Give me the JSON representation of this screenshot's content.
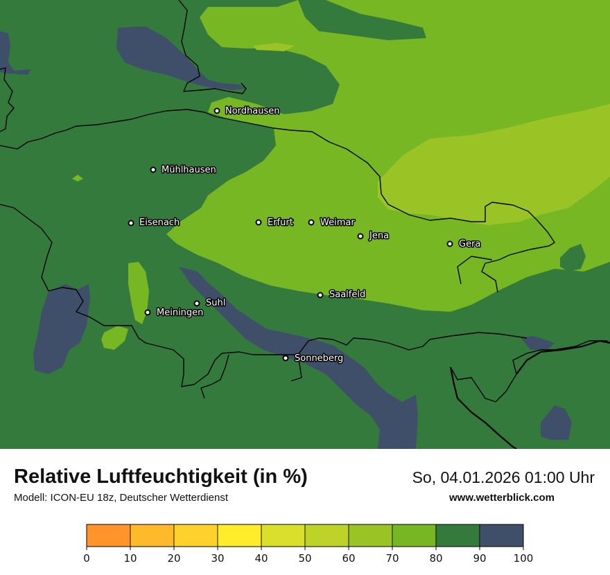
{
  "map": {
    "cities": [
      {
        "name": "Nordhausen",
        "id": "nordhausen"
      },
      {
        "name": "Mühlhausen",
        "id": "muehlhausen"
      },
      {
        "name": "Eisenach",
        "id": "eisenach"
      },
      {
        "name": "Erfurt",
        "id": "erfurt"
      },
      {
        "name": "Weimar",
        "id": "weimar"
      },
      {
        "name": "Jena",
        "id": "jena"
      },
      {
        "name": "Gera",
        "id": "gera"
      },
      {
        "name": "Suhl",
        "id": "suhl"
      },
      {
        "name": "Meiningen",
        "id": "meiningen"
      },
      {
        "name": "Saalfeld",
        "id": "saalfeld"
      },
      {
        "name": "Sonneberg",
        "id": "sonneberg"
      }
    ],
    "colors": {
      "class_60_70": "#9ac425",
      "class_70_80": "#77b723",
      "class_80_90": "#347a3c",
      "class_90_100": "#3f4f69",
      "border": "#000000"
    }
  },
  "header": {
    "title": "Relative Luftfeuchtigkeit (in %)",
    "subtitle": "Modell: ICON-EU 18z, Deutscher Wetterdienst",
    "datetime": "So, 04.01.2026 01:00 Uhr",
    "website": "www.wetterblick.com"
  },
  "legend": {
    "ticks": [
      "0",
      "10",
      "20",
      "30",
      "40",
      "50",
      "60",
      "70",
      "80",
      "90",
      "100"
    ],
    "colors": [
      "#ff942b",
      "#ffba2b",
      "#ffd12b",
      "#ffec2b",
      "#d9df2b",
      "#bdd32a",
      "#9ac425",
      "#77b723",
      "#347a3c",
      "#3f4f69"
    ]
  }
}
